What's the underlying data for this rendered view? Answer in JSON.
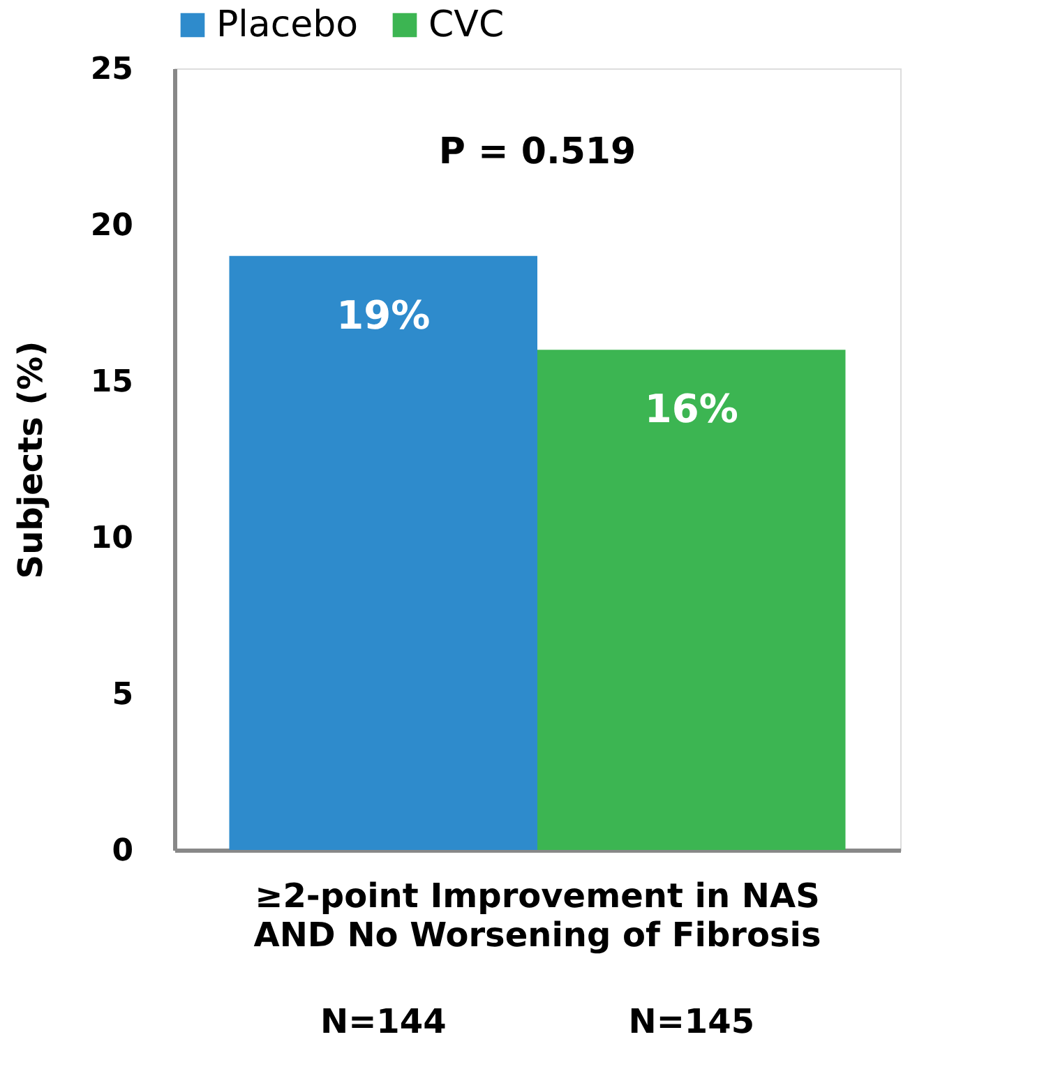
{
  "chart_data": {
    "type": "bar",
    "ylabel": "Subjects (%)",
    "categories": [
      "≥2-point Improvement in NAS AND No Worsening of Fibrosis"
    ],
    "series": [
      {
        "name": "Placebo",
        "color": "#2e8bcc",
        "values": [
          19
        ],
        "value_labels": [
          "19%"
        ]
      },
      {
        "name": "CVC",
        "color": "#3cb552",
        "values": [
          16
        ],
        "value_labels": [
          "16%"
        ]
      }
    ],
    "ylim": [
      0,
      25
    ],
    "yticks": [
      0,
      5,
      10,
      15,
      20,
      25
    ],
    "grid": false,
    "legend": "top",
    "annotations": [
      "P = 0.519",
      "N=144",
      "N=145"
    ]
  }
}
